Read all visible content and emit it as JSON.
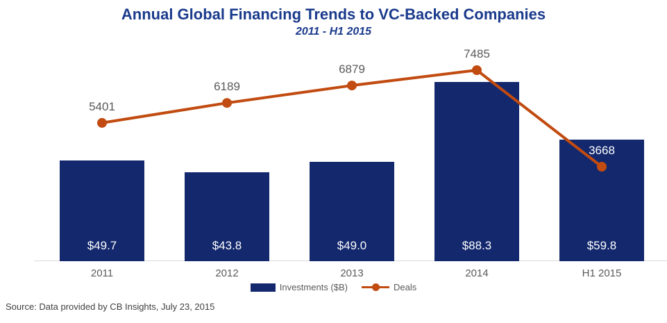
{
  "page": {
    "title": "Annual Global Financing Trends to VC-Backed Companies",
    "subtitle": "2011 - H1 2015",
    "source": "Source: Data provided by CB Insights, July 23, 2015"
  },
  "legend": {
    "investments_label": "Investments ($B)",
    "deals_label": "Deals"
  },
  "colors": {
    "title": "#1a3a8c",
    "bar": "#13286d",
    "line": "#c14b10",
    "label_gray": "#595959",
    "bar_label_white": "#ffffff",
    "axis": "#d9d9d9",
    "source_text": "#3f3f3f"
  },
  "chart_data": {
    "type": "bar+line",
    "title": "Annual Global Financing Trends to VC-Backed Companies",
    "subtitle": "2011 - H1 2015",
    "categories": [
      "2011",
      "2012",
      "2013",
      "2014",
      "H1 2015"
    ],
    "series": [
      {
        "name": "Investments ($B)",
        "type": "bar",
        "values": [
          49.7,
          43.8,
          49.0,
          88.3,
          59.8
        ],
        "labels": [
          "$49.7",
          "$43.8",
          "$49.0",
          "$88.3",
          "$59.8"
        ],
        "color": "#13286d"
      },
      {
        "name": "Deals",
        "type": "line",
        "values": [
          5401,
          6189,
          6879,
          7485,
          3668
        ],
        "labels": [
          "5401",
          "6189",
          "6879",
          "7485",
          "3668"
        ],
        "color": "#c14b10"
      }
    ],
    "xlabel": "",
    "ylabel": "",
    "grid": false,
    "legend_position": "bottom",
    "value_labels_inside_bars": true
  }
}
